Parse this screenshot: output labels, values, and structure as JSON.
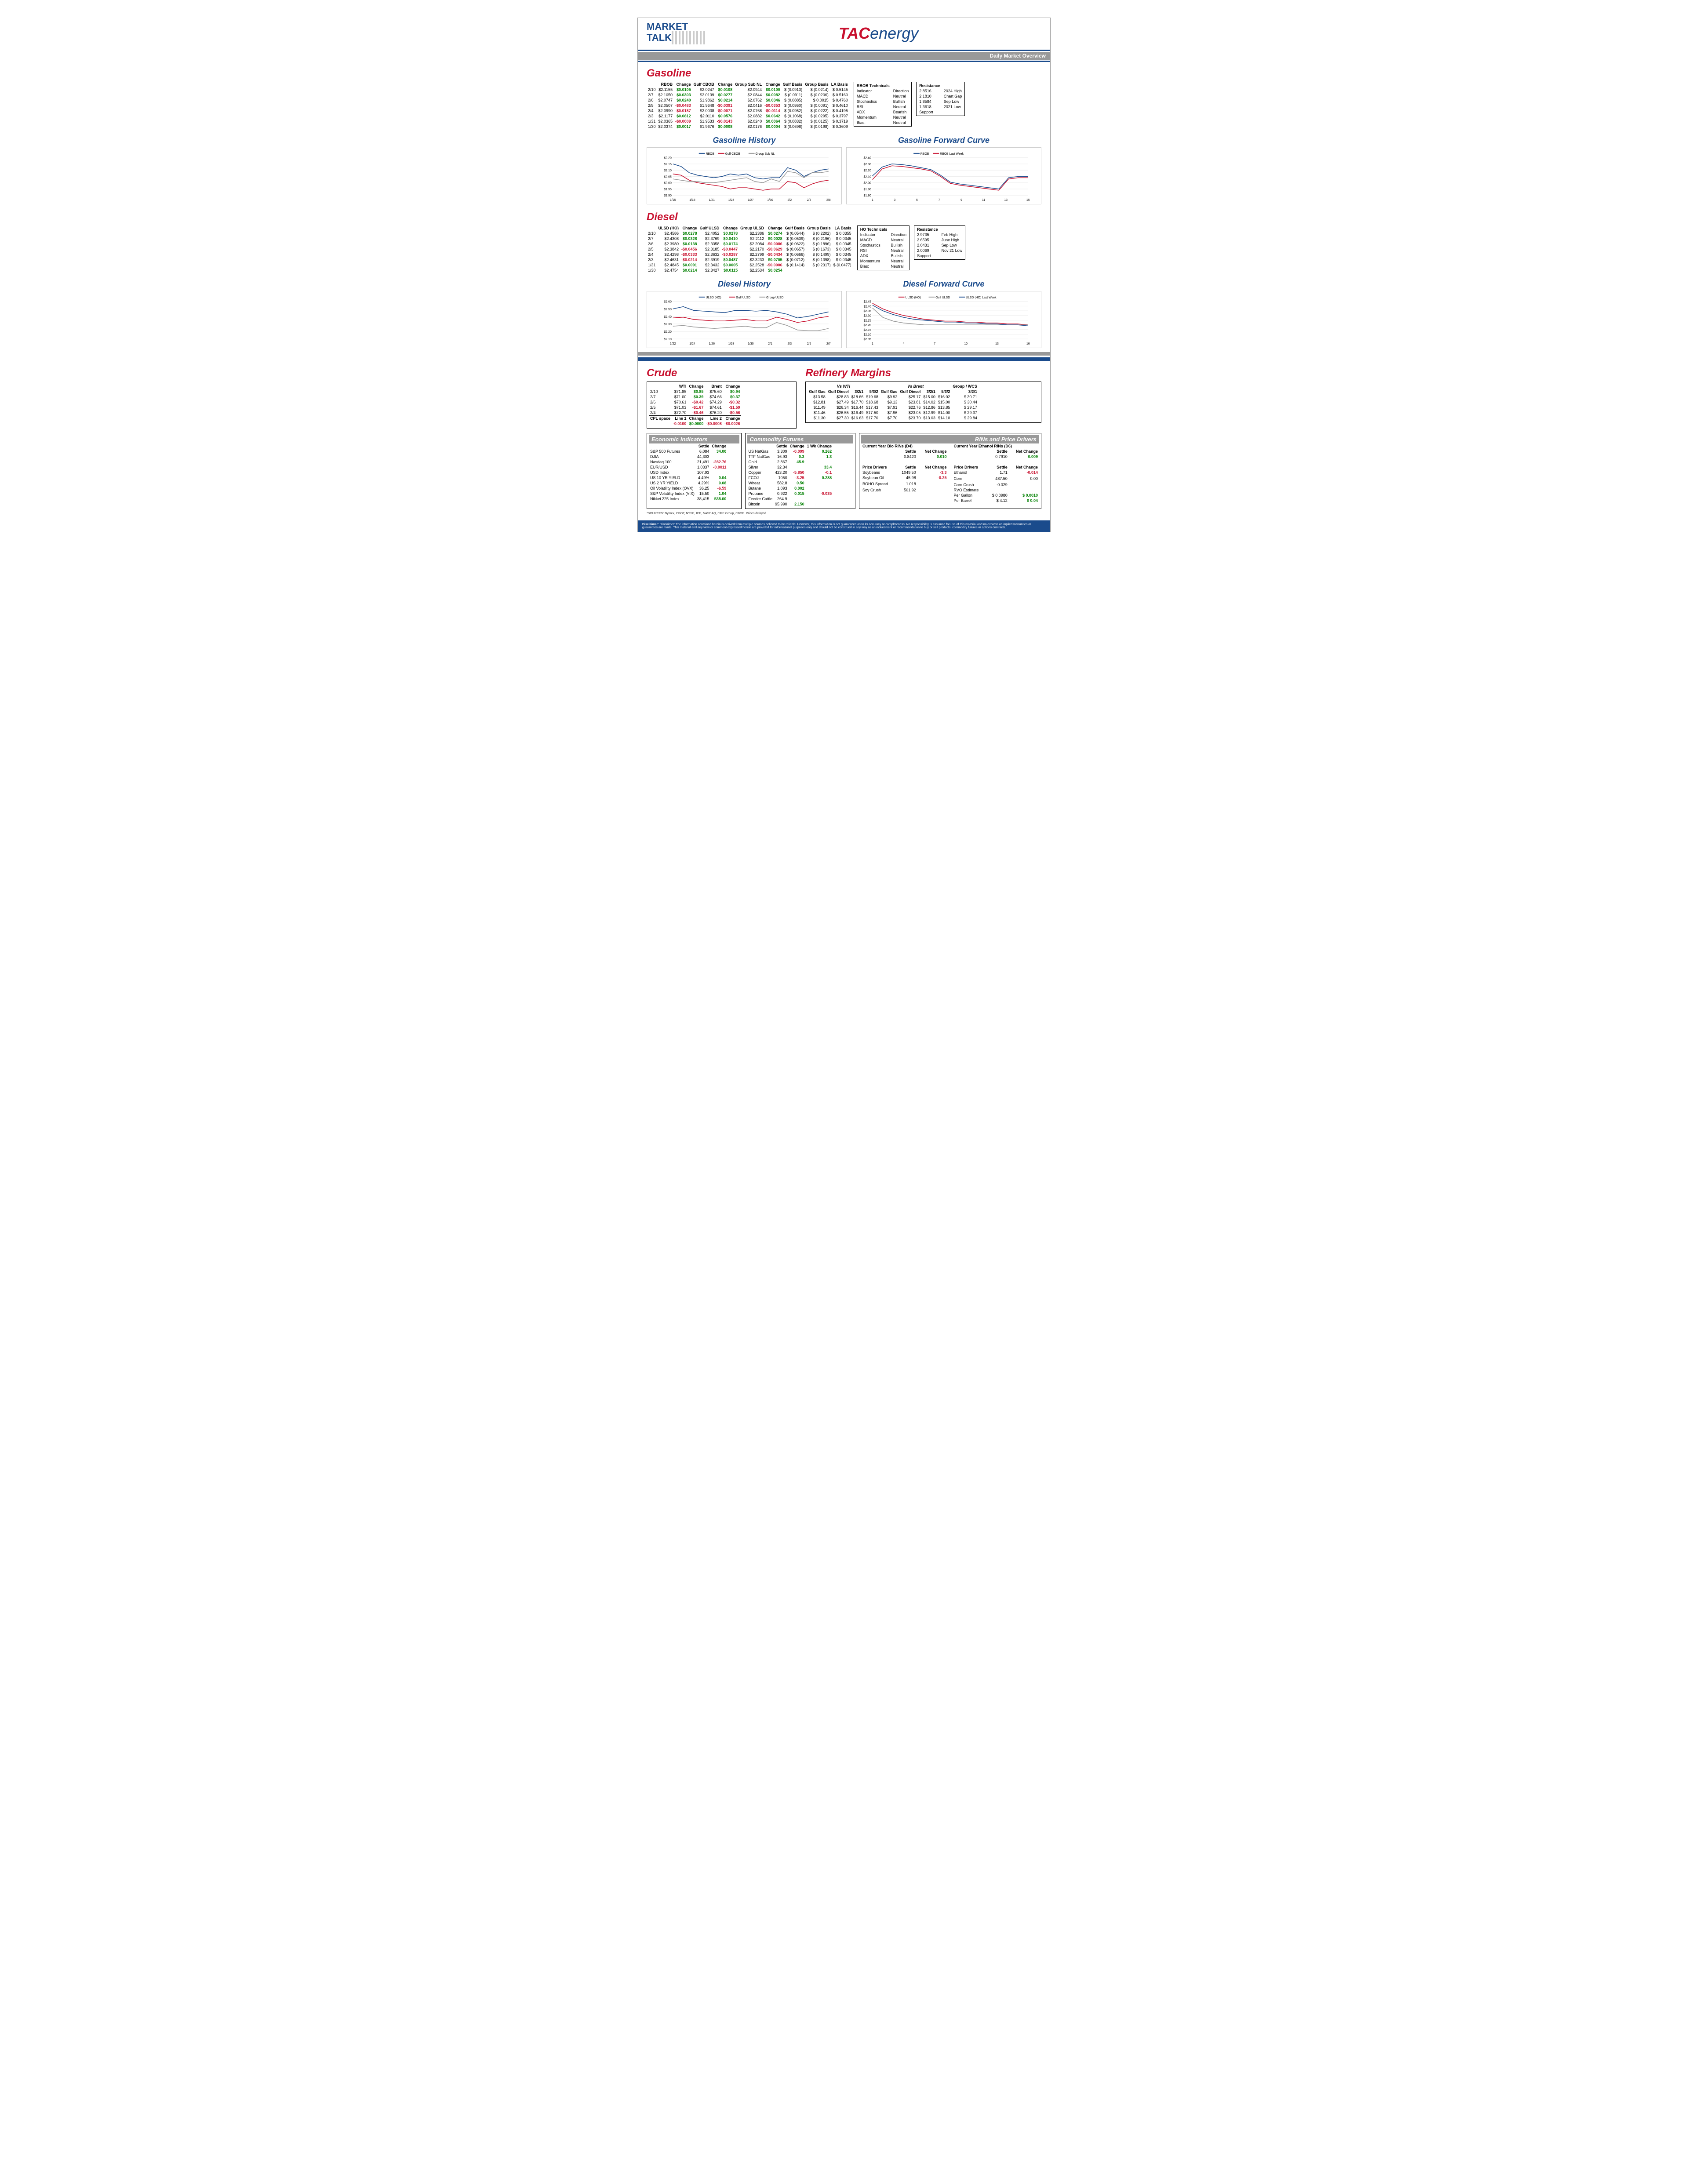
{
  "header": {
    "mt1": "MARKET",
    "mt2": "TALK",
    "tac": "TAC",
    "energy": "energy",
    "subtitle": "Daily Market Overview"
  },
  "gasoline": {
    "title": "Gasoline",
    "cols": [
      "",
      "RBOB",
      "Change",
      "Gulf CBOB",
      "Change",
      "Group Sub NL",
      "Change",
      "Gulf Basis",
      "Group Basis",
      "LA Basis"
    ],
    "rows": [
      [
        "2/10",
        "$2.1155",
        "$0.0105",
        "$2.0247",
        "$0.0108",
        "$2.0944",
        "$0.0100",
        "$ (0.0913)",
        "$ (0.0214)",
        "$ 0.5145"
      ],
      [
        "2/7",
        "$2.1050",
        "$0.0303",
        "$2.0139",
        "$0.0277",
        "$2.0844",
        "$0.0082",
        "$ (0.0911)",
        "$ (0.0206)",
        "$ 0.5160"
      ],
      [
        "2/6",
        "$2.0747",
        "$0.0240",
        "$1.9862",
        "$0.0214",
        "$2.0762",
        "$0.0346",
        "$ (0.0885)",
        "$  0.0015",
        "$ 0.4760"
      ],
      [
        "2/5",
        "$2.0507",
        "-$0.0483",
        "$1.9648",
        "-$0.0391",
        "$2.0416",
        "-$0.0353",
        "$ (0.0860)",
        "$ (0.0091)",
        "$ 0.4610"
      ],
      [
        "2/4",
        "$2.0990",
        "-$0.0187",
        "$2.0038",
        "-$0.0071",
        "$2.0768",
        "-$0.0114",
        "$ (0.0952)",
        "$ (0.0222)",
        "$ 0.4195"
      ],
      [
        "2/3",
        "$2.1177",
        "$0.0812",
        "$2.0110",
        "$0.0576",
        "$2.0882",
        "$0.0642",
        "$ (0.1068)",
        "$ (0.0295)",
        "$ 0.3797"
      ],
      [
        "1/31",
        "$2.0365",
        "-$0.0009",
        "$1.9533",
        "-$0.0143",
        "$2.0240",
        "$0.0064",
        "$ (0.0832)",
        "$ (0.0125)",
        "$ 0.3719"
      ],
      [
        "1/30",
        "$2.0374",
        "$0.0017",
        "$1.9676",
        "$0.0008",
        "$2.0176",
        "$0.0004",
        "$ (0.0698)",
        "$ (0.0198)",
        "$ 0.3609"
      ]
    ],
    "tech": {
      "title": "RBOB Technicals",
      "rows": [
        [
          "Indicator",
          "Direction"
        ],
        [
          "MACD",
          "Neutral"
        ],
        [
          "Stochastics",
          "Bullish"
        ],
        [
          "RSI",
          "Neutral"
        ],
        [
          "ADX",
          "Bearish"
        ],
        [
          "Momentum",
          "Neutral"
        ],
        [
          "Bias:",
          "Neutral"
        ]
      ]
    },
    "res": {
      "rows": [
        [
          "Resistance",
          ""
        ],
        [
          "2.8516",
          "2024 High"
        ],
        [
          "2.1810",
          "Chart Gap"
        ],
        [
          "1.8584",
          "Sep Low"
        ],
        [
          "1.3618",
          "2021 Low"
        ],
        [
          "Support",
          ""
        ]
      ]
    },
    "history": {
      "title": "Gasoline History",
      "legend": [
        "RBOB",
        "Gulf CBOB",
        "Group Sub NL"
      ],
      "colors": [
        "#1a4b8c",
        "#c8102e",
        "#999"
      ],
      "ylim": [
        1.9,
        2.2
      ],
      "yticks": [
        "$1.90",
        "$1.95",
        "$2.00",
        "$2.05",
        "$2.10",
        "$2.15",
        "$2.20"
      ],
      "xticks": [
        "1/15",
        "1/18",
        "1/21",
        "1/24",
        "1/27",
        "1/30",
        "2/2",
        "2/5",
        "2/8"
      ],
      "series": [
        [
          2.15,
          2.13,
          2.08,
          2.06,
          2.05,
          2.04,
          2.05,
          2.07,
          2.06,
          2.07,
          2.04,
          2.03,
          2.04,
          2.04,
          2.12,
          2.1,
          2.05,
          2.08,
          2.1,
          2.11
        ],
        [
          2.07,
          2.06,
          2.02,
          2.0,
          1.99,
          1.98,
          1.97,
          1.95,
          1.96,
          1.96,
          1.95,
          1.94,
          1.95,
          1.95,
          2.01,
          2.0,
          1.96,
          1.99,
          2.01,
          2.02
        ],
        [
          2.03,
          2.02,
          2.01,
          2.01,
          2.0,
          2.0,
          2.01,
          2.02,
          2.03,
          2.04,
          2.01,
          2.0,
          2.03,
          2.01,
          2.09,
          2.08,
          2.04,
          2.08,
          2.08,
          2.09
        ]
      ]
    },
    "forward": {
      "title": "Gasoline Forward Curve",
      "legend": [
        "RBOB",
        "RBOB Last Week"
      ],
      "colors": [
        "#1a4b8c",
        "#c8102e"
      ],
      "ylim": [
        1.8,
        2.4
      ],
      "yticks": [
        "$1.80",
        "$1.90",
        "$2.00",
        "$2.10",
        "$2.20",
        "$2.30",
        "$2.40"
      ],
      "xticks": [
        "1",
        "3",
        "5",
        "7",
        "9",
        "11",
        "13",
        "15"
      ],
      "series": [
        [
          2.11,
          2.25,
          2.3,
          2.29,
          2.27,
          2.24,
          2.21,
          2.12,
          2.01,
          1.98,
          1.96,
          1.94,
          1.92,
          1.9,
          2.08,
          2.1,
          2.1
        ],
        [
          2.05,
          2.22,
          2.27,
          2.26,
          2.24,
          2.22,
          2.19,
          2.1,
          1.99,
          1.96,
          1.94,
          1.92,
          1.9,
          1.88,
          2.06,
          2.08,
          2.08
        ]
      ]
    }
  },
  "diesel": {
    "title": "Diesel",
    "cols": [
      "",
      "ULSD (HO)",
      "Change",
      "Gulf ULSD",
      "Change",
      "Group ULSD",
      "Change",
      "Gulf Basis",
      "Group Basis",
      "LA Basis"
    ],
    "rows": [
      [
        "2/10",
        "$2.4586",
        "$0.0278",
        "$2.4052",
        "$0.0278",
        "$2.2386",
        "$0.0274",
        "$ (0.0544)",
        "$ (0.2202)",
        "$ 0.0355"
      ],
      [
        "2/7",
        "$2.4308",
        "$0.0328",
        "$2.3769",
        "$0.0410",
        "$2.2112",
        "$0.0028",
        "$ (0.0539)",
        "$ (0.2196)",
        "$ 0.0345"
      ],
      [
        "2/6",
        "$2.3980",
        "$0.0138",
        "$2.3358",
        "$0.0174",
        "$2.2084",
        "-$0.0086",
        "$ (0.0622)",
        "$ (0.1896)",
        "$ 0.0345"
      ],
      [
        "2/5",
        "$2.3842",
        "-$0.0456",
        "$2.3185",
        "-$0.0447",
        "$2.2170",
        "-$0.0629",
        "$ (0.0657)",
        "$ (0.1673)",
        "$ 0.0345"
      ],
      [
        "2/4",
        "$2.4298",
        "-$0.0333",
        "$2.3632",
        "-$0.0287",
        "$2.2799",
        "-$0.0434",
        "$ (0.0666)",
        "$ (0.1499)",
        "$ 0.0345"
      ],
      [
        "2/3",
        "$2.4631",
        "-$0.0214",
        "$2.3919",
        "$0.0487",
        "$2.3233",
        "$0.0705",
        "$ (0.0712)",
        "$ (0.1398)",
        "$ 0.0345"
      ],
      [
        "1/31",
        "$2.4845",
        "$0.0091",
        "$2.3432",
        "$0.0005",
        "$2.2528",
        "-$0.0006",
        "$ (0.1414)",
        "$ (0.2317)",
        "$ (0.0477)"
      ],
      [
        "1/30",
        "$2.4754",
        "$0.0214",
        "$2.3427",
        "$0.0115",
        "$2.2534",
        "$0.0254",
        "",
        "",
        ""
      ]
    ],
    "tech": {
      "title": "HO Technicals",
      "rows": [
        [
          "Indicator",
          "Direction"
        ],
        [
          "MACD",
          "Neutral"
        ],
        [
          "Stochastics",
          "Bullish"
        ],
        [
          "RSI",
          "Neutral"
        ],
        [
          "ADX",
          "Bullish"
        ],
        [
          "Momentum",
          "Neutral"
        ],
        [
          "Bias:",
          "Neutral"
        ]
      ]
    },
    "res": {
      "rows": [
        [
          "Resistance",
          ""
        ],
        [
          "2.9735",
          "Feb High"
        ],
        [
          "2.6595",
          "June High"
        ],
        [
          "2.0431",
          "Sep Low"
        ],
        [
          "2.0069",
          "Nov 21 Low"
        ],
        [
          "Support",
          ""
        ]
      ]
    },
    "history": {
      "title": "Diesel History",
      "legend": [
        "ULSD (HO)",
        "Gulf ULSD",
        "Group ULSD"
      ],
      "colors": [
        "#1a4b8c",
        "#c8102e",
        "#999"
      ],
      "ylim": [
        2.1,
        2.6
      ],
      "yticks": [
        "$2.10",
        "$2.20",
        "$2.30",
        "$2.40",
        "$2.50",
        "$2.60"
      ],
      "xticks": [
        "1/22",
        "1/24",
        "1/26",
        "1/28",
        "1/30",
        "2/1",
        "2/3",
        "2/5",
        "2/7"
      ],
      "series": [
        [
          2.5,
          2.53,
          2.48,
          2.47,
          2.46,
          2.45,
          2.48,
          2.48,
          2.47,
          2.48,
          2.46,
          2.43,
          2.38,
          2.4,
          2.43,
          2.46
        ],
        [
          2.38,
          2.39,
          2.36,
          2.35,
          2.34,
          2.34,
          2.35,
          2.36,
          2.34,
          2.34,
          2.39,
          2.36,
          2.32,
          2.34,
          2.38,
          2.4
        ],
        [
          2.27,
          2.28,
          2.26,
          2.25,
          2.24,
          2.25,
          2.26,
          2.27,
          2.25,
          2.25,
          2.32,
          2.28,
          2.22,
          2.21,
          2.21,
          2.24
        ]
      ]
    },
    "forward": {
      "title": "Diesel Forward Curve",
      "legend": [
        "ULSD (HO)",
        "Gulf ULSD",
        "ULSD (HO) Last Week"
      ],
      "colors": [
        "#c8102e",
        "#999",
        "#1a4b8c"
      ],
      "ylim": [
        2.05,
        2.45
      ],
      "yticks": [
        "$2.05",
        "$2.10",
        "$2.15",
        "$2.20",
        "$2.25",
        "$2.30",
        "$2.35",
        "$2.40",
        "$2.45"
      ],
      "xticks": [
        "1",
        "4",
        "7",
        "10",
        "13",
        "16"
      ],
      "series": [
        [
          2.43,
          2.37,
          2.33,
          2.3,
          2.28,
          2.26,
          2.25,
          2.24,
          2.24,
          2.23,
          2.23,
          2.22,
          2.22,
          2.21,
          2.21,
          2.2
        ],
        [
          2.38,
          2.28,
          2.24,
          2.22,
          2.21,
          2.2,
          2.2,
          2.2,
          2.2,
          2.2,
          2.2,
          2.2,
          2.2,
          2.2,
          2.2,
          2.2
        ],
        [
          2.41,
          2.35,
          2.31,
          2.28,
          2.26,
          2.25,
          2.24,
          2.23,
          2.23,
          2.22,
          2.22,
          2.21,
          2.21,
          2.2,
          2.2,
          2.19
        ]
      ]
    }
  },
  "crude": {
    "title": "Crude",
    "cols": [
      "",
      "WTI",
      "Change",
      "Brent",
      "Change"
    ],
    "rows": [
      [
        "2/10",
        "$71.85",
        "$0.85",
        "$75.60",
        "$0.94"
      ],
      [
        "2/7",
        "$71.00",
        "$0.39",
        "$74.66",
        "$0.37"
      ],
      [
        "2/6",
        "$70.61",
        "-$0.42",
        "$74.29",
        "-$0.32"
      ],
      [
        "2/5",
        "$71.03",
        "-$1.67",
        "$74.61",
        "-$1.59"
      ],
      [
        "2/4",
        "$72.70",
        "-$0.46",
        "$76.20",
        "-$0.56"
      ]
    ],
    "cpl": [
      "CPL space",
      "Line 1",
      "Change",
      "Line 2",
      "Change"
    ],
    "cplrow": [
      "",
      "-0.0100",
      "$0.0000",
      "-$0.0008",
      "-$0.0026"
    ]
  },
  "margins": {
    "title": "Refinery Margins",
    "head1": [
      "Vs WTI",
      "",
      "",
      "",
      "Vs Brent",
      "",
      "",
      "",
      "Group / WCS"
    ],
    "cols": [
      "Gulf Gas",
      "Gulf Diesel",
      "3/2/1",
      "5/3/2",
      "Gulf Gas",
      "Gulf Diesel",
      "3/2/1",
      "5/3/2",
      "3/2/1"
    ],
    "rows": [
      [
        "$13.58",
        "$28.83",
        "$18.66",
        "$19.68",
        "$9.92",
        "$25.17",
        "$15.00",
        "$16.02",
        "$ 30.71"
      ],
      [
        "$12.81",
        "$27.49",
        "$17.70",
        "$18.68",
        "$9.13",
        "$23.81",
        "$14.02",
        "$15.00",
        "$ 30.44"
      ],
      [
        "$11.49",
        "$26.34",
        "$16.44",
        "$17.43",
        "$7.91",
        "$22.76",
        "$12.86",
        "$13.85",
        "$ 29.17"
      ],
      [
        "$11.46",
        "$26.55",
        "$16.49",
        "$17.50",
        "$7.96",
        "$23.05",
        "$12.99",
        "$14.00",
        "$ 29.37"
      ],
      [
        "$11.30",
        "$27.30",
        "$16.63",
        "$17.70",
        "$7.70",
        "$23.70",
        "$13.03",
        "$14.10",
        "$ 29.84"
      ]
    ]
  },
  "econ": {
    "title": "Economic Indicators",
    "cols": [
      "",
      "Settle",
      "Change"
    ],
    "rows": [
      [
        "S&P 500 Futures",
        "6,084",
        "34.00"
      ],
      [
        "DJIA",
        "44,303",
        ""
      ],
      [
        "Nasdaq 100",
        "21,491",
        "-282.76"
      ],
      [
        "EUR/USD",
        "1.0337",
        "-0.0011"
      ],
      [
        "USD Index",
        "107.93",
        ""
      ],
      [
        "US 10 YR YIELD",
        "4.49%",
        "0.04"
      ],
      [
        "US 2 YR YIELD",
        "4.29%",
        "0.08"
      ],
      [
        "Oil Volatility Index (OVX)",
        "36.25",
        "-6.59"
      ],
      [
        "S&P Volatility Index (VIX)",
        "15.50",
        "1.04"
      ],
      [
        "Nikkei 225 Index",
        "38,415",
        "535.00"
      ]
    ]
  },
  "comm": {
    "title": "Commodity Futures",
    "cols": [
      "",
      "Settle",
      "Change",
      "1 Wk Change"
    ],
    "rows": [
      [
        "US NatGas",
        "3.309",
        "-0.099",
        "0.262"
      ],
      [
        "TTF NatGas",
        "16.93",
        "0.3",
        "1.3"
      ],
      [
        "Gold",
        "2,867",
        "45.9",
        ""
      ],
      [
        "Silver",
        "32.34",
        "",
        "33.4"
      ],
      [
        "Copper",
        "423.20",
        "-5.850",
        "-0.1"
      ],
      [
        "FCOJ",
        "1050",
        "-3.25",
        "0.288"
      ],
      [
        "Wheat",
        "582.8",
        "0.50",
        ""
      ],
      [
        "Butane",
        "1.093",
        "0.002",
        ""
      ],
      [
        "Propane",
        "0.922",
        "0.015",
        "-0.035"
      ],
      [
        "Feeder Cattle",
        "264.9",
        "",
        ""
      ],
      [
        "Bitcoin",
        "95,990",
        "2,150",
        ""
      ]
    ]
  },
  "rins": {
    "title": "RINs and Price Drivers",
    "d4": {
      "title": "Current Year Bio RINs (D4)",
      "settle": "0.8420",
      "chg": "0.010"
    },
    "d6": {
      "title": "Current Year Ethanol RINs (D6)",
      "settle": "0.7910",
      "chg": "0.009"
    },
    "left": {
      "title": "Price Drivers",
      "cols": [
        "",
        "Settle",
        "Net Change"
      ],
      "rows": [
        [
          "Soybeans",
          "1049.50",
          "-3.3"
        ],
        [
          "Soybean Oil",
          "45.98",
          "-0.25"
        ],
        [
          "",
          "",
          " "
        ],
        [
          "BOHO Spread",
          "1.018",
          ""
        ],
        [
          "",
          "",
          " "
        ],
        [
          "Soy Crush",
          "501.92",
          ""
        ]
      ]
    },
    "right": {
      "title": "Price Drivers",
      "cols": [
        "",
        "Settle",
        "Net Change"
      ],
      "rows": [
        [
          "Ethanol",
          "1.71",
          "-0.014"
        ],
        [
          "",
          "",
          " "
        ],
        [
          "Corn",
          "487.50",
          "0.00"
        ],
        [
          "",
          "",
          " "
        ],
        [
          "Corn Crush",
          "-0.029",
          ""
        ],
        [
          "RVO Estimate",
          "",
          ""
        ],
        [
          "Per Gallon",
          "$ 0.0980",
          "$ 0.0010"
        ],
        [
          "Per Barrel",
          "$ 4.12",
          "$ 0.04"
        ]
      ]
    }
  },
  "sources": "*SOURCES: Nymex, CBOT, NYSE, ICE, NASDAQ, CME Group, CBOE.  Prices delayed.",
  "disclaimer": "Disclaimer: The information contained herein is derived from multiple sources believed to be reliable. However, this information is not guaranteed as to its accuracy or completeness. No responsibility is assumed for use of this material and no express or implied warranties or guarantees are made. This material and any view or comment expressed herein are provided for informational purposes only and should not be construed in any way as an inducement or recommendation to buy or sell products, commodity futures or options contracts."
}
